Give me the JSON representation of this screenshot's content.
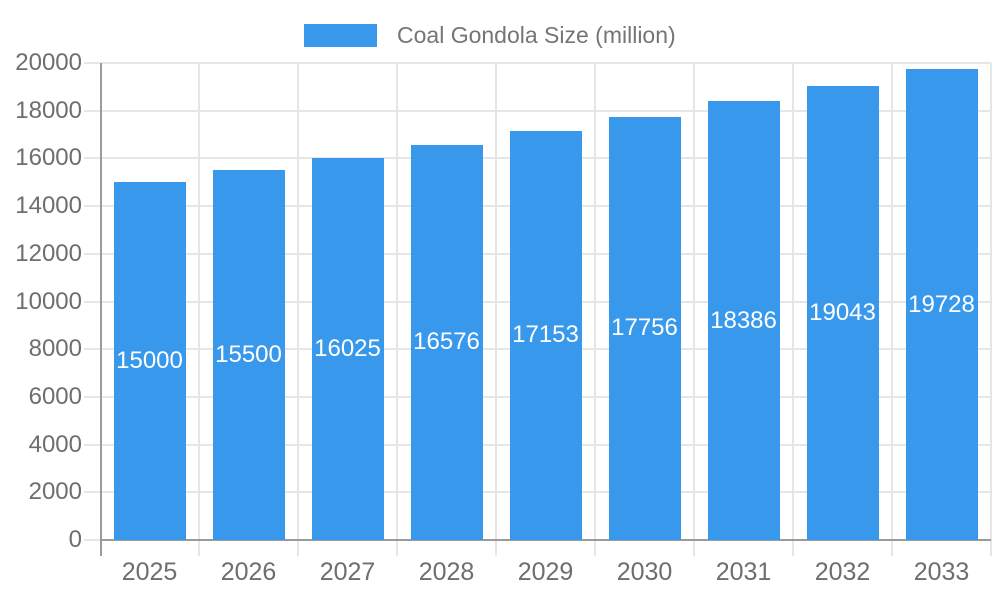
{
  "legend": {
    "label": "Coal Gondola Size (million)"
  },
  "chart_data": {
    "type": "bar",
    "title": "Coal Gondola Size (million)",
    "categories": [
      "2025",
      "2026",
      "2027",
      "2028",
      "2029",
      "2030",
      "2031",
      "2032",
      "2033"
    ],
    "series": [
      {
        "name": "Coal Gondola Size (million)",
        "color": "#3898EC",
        "values": [
          15000,
          15500,
          16025,
          16576,
          17153,
          17756,
          18386,
          19043,
          19728
        ]
      }
    ],
    "bar_value_labels": [
      "15000",
      "15500",
      "16025",
      "16576",
      "17153",
      "17756",
      "18386",
      "19043",
      "19728"
    ],
    "xlabel": "",
    "ylabel": "",
    "ylim": [
      0,
      20000
    ],
    "ytick_interval": 2000,
    "ytick_labels": [
      "0",
      "2000",
      "4000",
      "6000",
      "8000",
      "10000",
      "12000",
      "14000",
      "16000",
      "18000",
      "20000"
    ],
    "grid": true,
    "vertical_category_gridlines": true,
    "legend_position": "top",
    "value_labels_inside_bars": true,
    "colors": {
      "bar": "#3898EC",
      "bar_label_text": "#ffffff",
      "axis_text": "#6e6e6e",
      "legend_text": "#757575",
      "gridline": "#e6e6e6",
      "axis_line": "#9b9b9b",
      "background": "#ffffff"
    }
  }
}
